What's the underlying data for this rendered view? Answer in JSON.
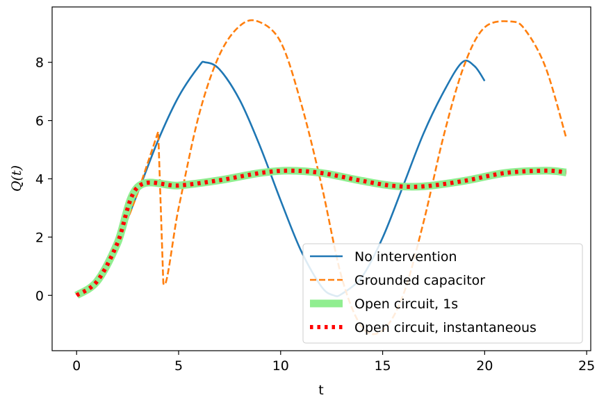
{
  "chart_data": {
    "type": "line",
    "xlabel": "t",
    "ylabel": "Q(t)",
    "xlim": [
      -1.2,
      25.2
    ],
    "ylim": [
      -1.9,
      9.9
    ],
    "xticks": [
      0,
      5,
      10,
      15,
      20,
      25
    ],
    "yticks": [
      0,
      2,
      4,
      6,
      8
    ],
    "grid": false,
    "legend_position": "lower right",
    "series": [
      {
        "name": "No intervention",
        "color": "#1f77b4",
        "style": "solid",
        "x": [
          0,
          1,
          2,
          3,
          4,
          5,
          6,
          6.3,
          7,
          8,
          9,
          10,
          11,
          12,
          12.6,
          13,
          14,
          15,
          16,
          17,
          18,
          18.9,
          19.5,
          20
        ],
        "y": [
          0,
          0.48,
          1.79,
          3.53,
          5.33,
          6.82,
          7.87,
          8.0,
          7.76,
          6.7,
          5.1,
          3.26,
          1.53,
          0.3,
          0.0,
          0.05,
          0.65,
          1.98,
          3.75,
          5.55,
          7.0,
          8.0,
          7.87,
          7.36
        ]
      },
      {
        "name": "Grounded capacitor",
        "color": "#ff7f0e",
        "style": "dashed",
        "x": [
          0,
          1,
          2,
          3,
          4,
          4.25,
          5,
          6,
          7,
          8,
          8.9,
          10,
          11,
          12,
          13,
          14,
          15,
          16,
          17,
          18,
          19,
          20,
          21.3,
          22,
          23,
          24
        ],
        "y": [
          0,
          0.48,
          1.79,
          3.53,
          5.62,
          0.42,
          3.0,
          6.2,
          8.25,
          9.25,
          9.4,
          8.7,
          6.6,
          3.8,
          0.6,
          -1.1,
          -1.2,
          0.0,
          2.5,
          5.5,
          7.9,
          9.2,
          9.4,
          9.1,
          7.8,
          5.4
        ]
      },
      {
        "name": "Open circuit, 1s",
        "color": "#90ee90",
        "style": "thick",
        "x": [
          0,
          1,
          2,
          3,
          5,
          7,
          9,
          10.4,
          12,
          14,
          15.5,
          17,
          19,
          21,
          23,
          24
        ],
        "y": [
          0,
          0.48,
          1.79,
          3.72,
          3.77,
          3.95,
          4.2,
          4.28,
          4.2,
          3.93,
          3.76,
          3.74,
          3.93,
          4.2,
          4.28,
          4.22
        ]
      },
      {
        "name": "Open circuit, instantaneous",
        "color": "#ff0000",
        "style": "dotted",
        "x": [
          0,
          1,
          2,
          3,
          5,
          7,
          9,
          10.4,
          12,
          14,
          15.5,
          17,
          19,
          21,
          23,
          24
        ],
        "y": [
          0,
          0.48,
          1.79,
          3.72,
          3.77,
          3.95,
          4.2,
          4.28,
          4.2,
          3.93,
          3.76,
          3.74,
          3.93,
          4.2,
          4.28,
          4.22
        ]
      }
    ]
  }
}
